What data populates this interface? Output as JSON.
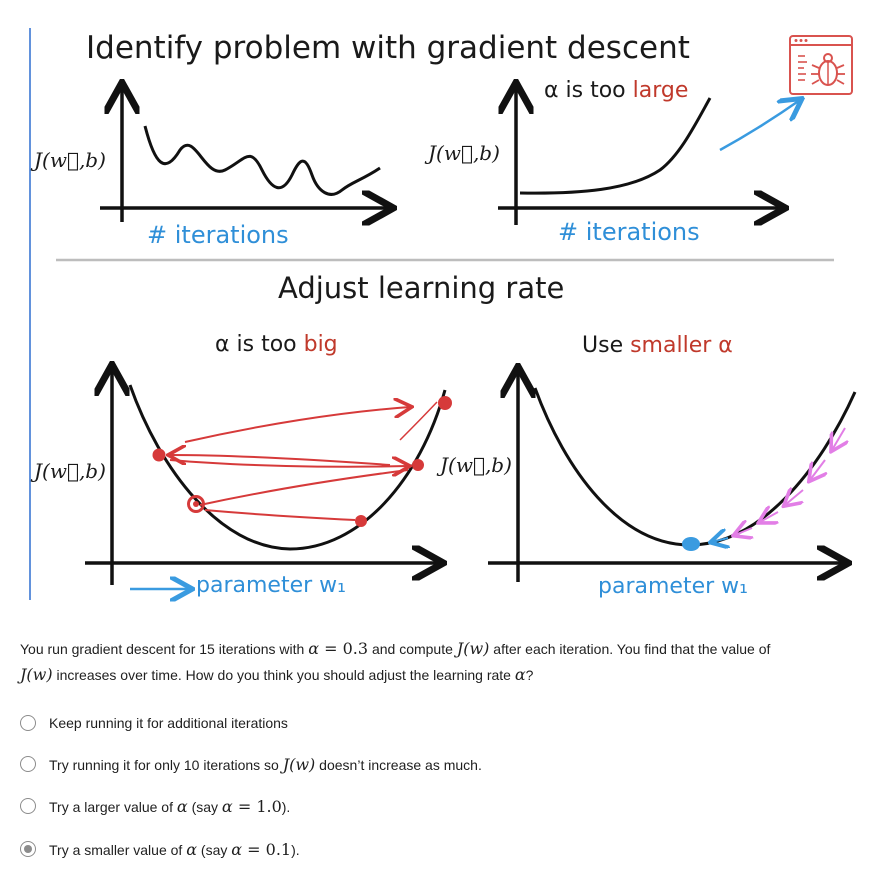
{
  "figure": {
    "title": "Identify problem with gradient descent",
    "subtitle": "Adjust learning rate",
    "top_left": {
      "ylabel": "J(w⃗,b)",
      "xlabel": "# iterations"
    },
    "top_right": {
      "ylabel": "J(w⃗,b)",
      "xlabel": "# iterations",
      "caption_prefix": "α is too ",
      "caption_highlight": "large"
    },
    "bottom_left": {
      "ylabel": "J(w⃗,b)",
      "xlabel": "parameter w₁",
      "caption_prefix": "α is too ",
      "caption_highlight": "big"
    },
    "bottom_right": {
      "ylabel": "J(w⃗,b)",
      "xlabel": "parameter w₁",
      "caption_prefix": "Use ",
      "caption_highlight": "smaller α"
    },
    "colors": {
      "highlight_red": "#c0392b",
      "label_blue": "#2f8fd8",
      "arrow_red": "#d63a3a",
      "arrow_pink": "#e27ee6",
      "point_blue": "#3a9be0",
      "bug_icon": "#d9534f"
    },
    "icon": "bug-report-icon"
  },
  "question": {
    "part1": "You run gradient descent for 15 iterations with ",
    "alpha_eq": "α = ",
    "alpha_value": "0.3",
    "part2": " and compute ",
    "jw1": "J(w)",
    "part3": " after each iteration. You find that the value of ",
    "jw2": "J(w)",
    "part4": " increases over time.  How do you think you should adjust the learning rate ",
    "alpha_end": "α",
    "part5": "?"
  },
  "options": [
    {
      "text": "Keep running it for additional iterations",
      "selected": false
    },
    {
      "prefix": "Try running it for only 10 iterations so ",
      "math": "J(w)",
      "suffix": " doesn’t increase as much.",
      "selected": false
    },
    {
      "prefix": "Try a larger value of ",
      "math": "α",
      "mid": " (say ",
      "math2": "α = ",
      "num": "1.0",
      "suffix": ").",
      "selected": false
    },
    {
      "prefix": "Try a smaller value of ",
      "math": "α",
      "mid": " (say ",
      "math2": "α = ",
      "num": "0.1",
      "suffix": ").",
      "selected": true
    }
  ]
}
